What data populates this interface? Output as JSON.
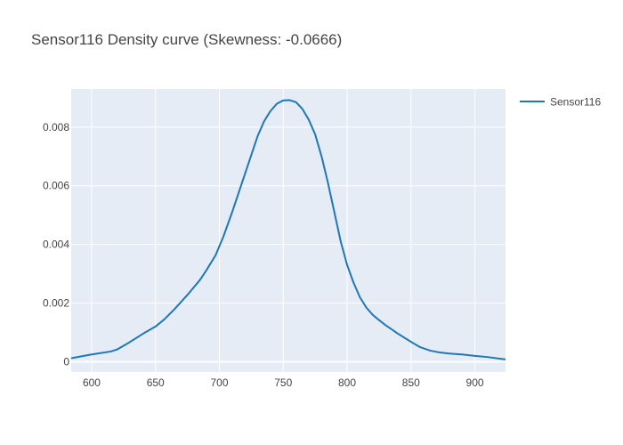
{
  "chart_data": {
    "type": "line",
    "title": "Sensor116 Density curve (Skewness: -0.0666)",
    "xlabel": "",
    "ylabel": "",
    "xlim": [
      584,
      924
    ],
    "ylim": [
      -0.00035,
      0.0093
    ],
    "x_ticks": [
      600,
      650,
      700,
      750,
      800,
      850,
      900
    ],
    "y_ticks": [
      0,
      0.002,
      0.004,
      0.006,
      0.008
    ],
    "x_tick_labels": [
      "600",
      "650",
      "700",
      "750",
      "800",
      "850",
      "900"
    ],
    "y_tick_labels": [
      "0",
      "0.002",
      "0.004",
      "0.006",
      "0.008"
    ],
    "grid": true,
    "legend_position": "top-right",
    "series": [
      {
        "name": "Sensor116",
        "color": "#1f77b4",
        "x": [
          584,
          600,
          615,
          620,
          628,
          640,
          650,
          657,
          665,
          675,
          685,
          690,
          697,
          703,
          710,
          720,
          730,
          735,
          740,
          745,
          750,
          755,
          760,
          765,
          770,
          775,
          780,
          785,
          790,
          795,
          800,
          805,
          810,
          815,
          820,
          825,
          830,
          835,
          840,
          850,
          857,
          865,
          872,
          880,
          890,
          900,
          910,
          924
        ],
        "y": [
          0.00012,
          0.00025,
          0.00035,
          0.00042,
          0.00062,
          0.00095,
          0.0012,
          0.00145,
          0.0018,
          0.00228,
          0.0028,
          0.00313,
          0.00363,
          0.00425,
          0.0051,
          0.0064,
          0.0077,
          0.0082,
          0.00855,
          0.0088,
          0.00891,
          0.00892,
          0.00885,
          0.00862,
          0.00825,
          0.00775,
          0.007,
          0.0061,
          0.0051,
          0.0041,
          0.0033,
          0.0027,
          0.0022,
          0.00185,
          0.0016,
          0.00142,
          0.00125,
          0.0011,
          0.00095,
          0.00068,
          0.0005,
          0.00038,
          0.00032,
          0.00028,
          0.00025,
          0.0002,
          0.00016,
          8e-05
        ]
      }
    ]
  }
}
